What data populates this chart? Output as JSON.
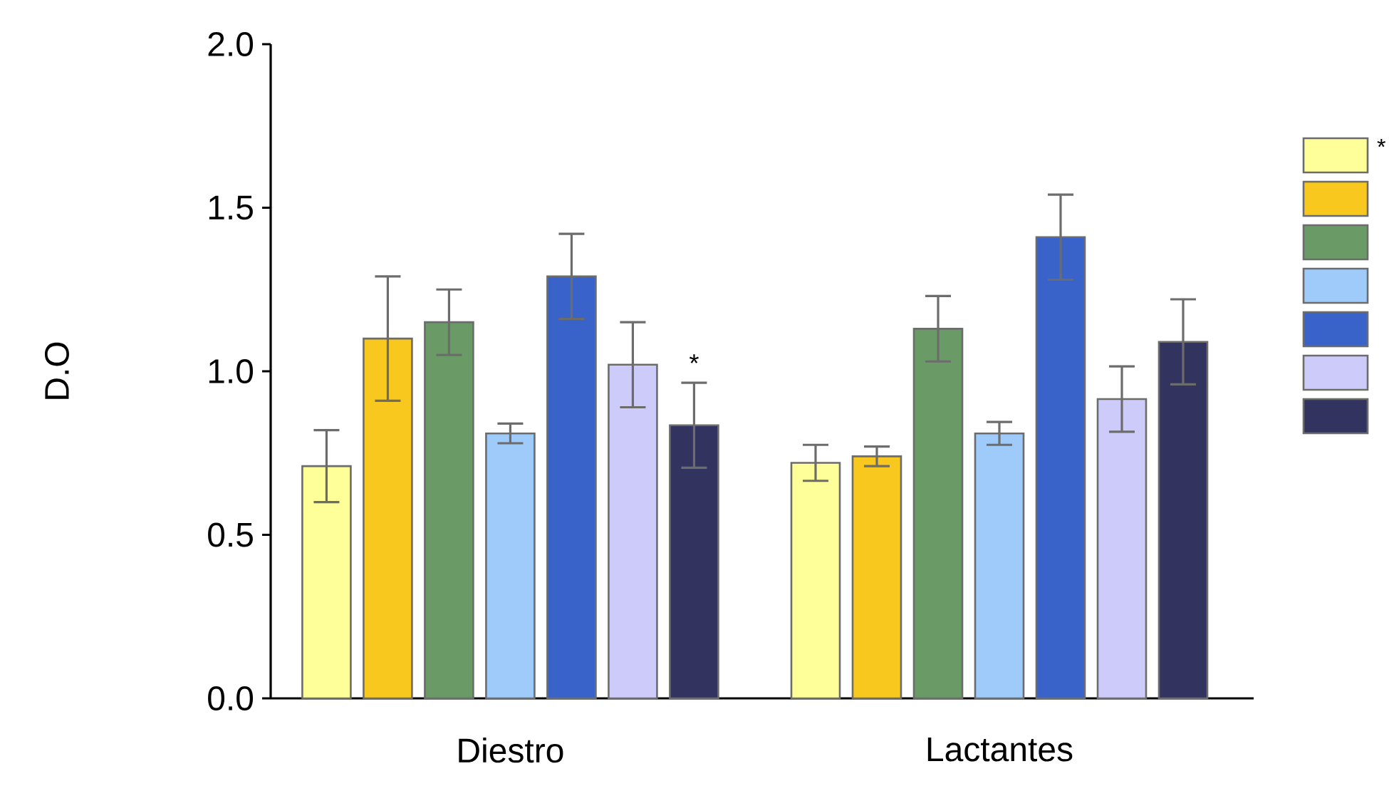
{
  "chart_data": {
    "type": "bar",
    "ylabel": "D.O",
    "categories": [
      "Diestro",
      "Lactantes"
    ],
    "series": [
      {
        "color": "#ffff99",
        "values": [
          0.71,
          0.72
        ],
        "errors": [
          0.11,
          0.055
        ]
      },
      {
        "color": "#f9c81e",
        "values": [
          1.1,
          0.74
        ],
        "errors": [
          0.19,
          0.03
        ]
      },
      {
        "color": "#6a9a65",
        "values": [
          1.15,
          1.13
        ],
        "errors": [
          0.1,
          0.1
        ]
      },
      {
        "color": "#9ecbfa",
        "values": [
          0.81,
          0.81
        ],
        "errors": [
          0.03,
          0.035
        ]
      },
      {
        "color": "#3a63c9",
        "values": [
          1.29,
          1.41
        ],
        "errors": [
          0.13,
          0.13
        ]
      },
      {
        "color": "#cccbfa",
        "values": [
          1.02,
          0.915
        ],
        "errors": [
          0.13,
          0.1
        ]
      },
      {
        "color": "#33335f",
        "values": [
          0.835,
          1.09
        ],
        "errors": [
          0.13,
          0.13
        ]
      }
    ],
    "ylim": [
      0,
      2
    ],
    "yticks": [
      {
        "value": 0,
        "label": "0.0"
      },
      {
        "value": 0.5,
        "label": "0.5"
      },
      {
        "value": 1,
        "label": "1.0"
      },
      {
        "value": 1.5,
        "label": "1.5"
      },
      {
        "value": 2,
        "label": "2.0"
      }
    ],
    "annotations": [
      "*",
      "*"
    ],
    "grid": false
  }
}
